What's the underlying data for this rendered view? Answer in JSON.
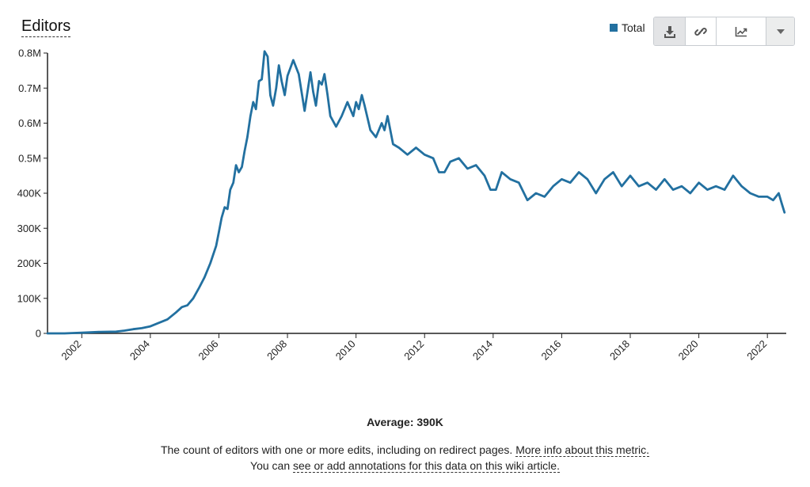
{
  "header": {
    "title": "Editors"
  },
  "legend": {
    "label": "Total",
    "color": "#2270a0"
  },
  "toolbar": {
    "buttons": [
      "download-icon",
      "link-icon",
      "chart-type-icon",
      "chevron-down-icon"
    ]
  },
  "summary": {
    "average": "Average: 390K"
  },
  "description": {
    "line1_text": "The count of editors with one or more edits, including on redirect pages.",
    "line1_link": "More info about this metric.",
    "line2_prefix": "You can",
    "line2_link": "see or add annotations for this data on this wiki article."
  },
  "chart_data": {
    "type": "line",
    "title": "",
    "xlabel": "",
    "ylabel": "",
    "color": "#2270a0",
    "xlim": [
      2001.0,
      2022.55
    ],
    "ylim": [
      0,
      800000
    ],
    "x_ticks": [
      "2002",
      "2004",
      "2006",
      "2008",
      "2010",
      "2012",
      "2014",
      "2016",
      "2018",
      "2020",
      "2022"
    ],
    "y_ticks": [
      {
        "value": 0,
        "label": "0"
      },
      {
        "value": 100000,
        "label": "100K"
      },
      {
        "value": 200000,
        "label": "200K"
      },
      {
        "value": 300000,
        "label": "300K"
      },
      {
        "value": 400000,
        "label": "400K"
      },
      {
        "value": 500000,
        "label": "0.5M"
      },
      {
        "value": 600000,
        "label": "0.6M"
      },
      {
        "value": 700000,
        "label": "0.7M"
      },
      {
        "value": 800000,
        "label": "0.8M"
      }
    ],
    "series": [
      {
        "x": [
          2001.0,
          2001.5,
          2002.0,
          2002.5,
          2003.0,
          2003.25,
          2003.5,
          2003.75,
          2004.0,
          2004.25,
          2004.5,
          2004.75,
          2004.92,
          2005.08,
          2005.25,
          2005.42,
          2005.58,
          2005.75,
          2005.92,
          2006.0,
          2006.08,
          2006.17,
          2006.25,
          2006.33,
          2006.42,
          2006.5,
          2006.58,
          2006.67,
          2006.75,
          2006.83,
          2006.92,
          2007.0,
          2007.08,
          2007.17,
          2007.25,
          2007.33,
          2007.42,
          2007.5,
          2007.58,
          2007.67,
          2007.75,
          2007.83,
          2007.92,
          2008.0,
          2008.17,
          2008.33,
          2008.5,
          2008.67,
          2008.75,
          2008.83,
          2008.92,
          2009.0,
          2009.08,
          2009.17,
          2009.25,
          2009.42,
          2009.58,
          2009.75,
          2009.92,
          2010.0,
          2010.08,
          2010.17,
          2010.25,
          2010.42,
          2010.58,
          2010.75,
          2010.83,
          2010.92,
          2011.08,
          2011.25,
          2011.5,
          2011.75,
          2012.0,
          2012.25,
          2012.42,
          2012.58,
          2012.75,
          2013.0,
          2013.25,
          2013.5,
          2013.75,
          2013.92,
          2014.08,
          2014.25,
          2014.5,
          2014.75,
          2015.0,
          2015.25,
          2015.5,
          2015.75,
          2016.0,
          2016.25,
          2016.5,
          2016.75,
          2017.0,
          2017.25,
          2017.5,
          2017.75,
          2018.0,
          2018.25,
          2018.5,
          2018.75,
          2019.0,
          2019.25,
          2019.5,
          2019.75,
          2020.0,
          2020.25,
          2020.5,
          2020.75,
          2021.0,
          2021.25,
          2021.5,
          2021.75,
          2022.0,
          2022.17,
          2022.33,
          2022.42,
          2022.5
        ],
        "y": [
          0,
          0,
          2000,
          4000,
          5000,
          8000,
          12000,
          15000,
          20000,
          30000,
          40000,
          60000,
          75000,
          80000,
          100000,
          130000,
          160000,
          200000,
          250000,
          290000,
          330000,
          360000,
          355000,
          410000,
          430000,
          480000,
          460000,
          475000,
          520000,
          560000,
          620000,
          660000,
          640000,
          720000,
          725000,
          805000,
          790000,
          680000,
          650000,
          700000,
          765000,
          720000,
          680000,
          735000,
          780000,
          740000,
          635000,
          745000,
          690000,
          650000,
          720000,
          710000,
          740000,
          680000,
          620000,
          590000,
          620000,
          660000,
          620000,
          660000,
          640000,
          680000,
          650000,
          580000,
          560000,
          600000,
          580000,
          620000,
          540000,
          530000,
          510000,
          530000,
          510000,
          500000,
          460000,
          460000,
          490000,
          500000,
          470000,
          480000,
          450000,
          410000,
          410000,
          460000,
          440000,
          430000,
          380000,
          400000,
          390000,
          420000,
          440000,
          430000,
          460000,
          440000,
          400000,
          440000,
          460000,
          420000,
          450000,
          420000,
          430000,
          410000,
          440000,
          410000,
          420000,
          400000,
          430000,
          410000,
          420000,
          410000,
          450000,
          420000,
          400000,
          390000,
          390000,
          380000,
          400000,
          370000,
          345000
        ]
      }
    ]
  }
}
